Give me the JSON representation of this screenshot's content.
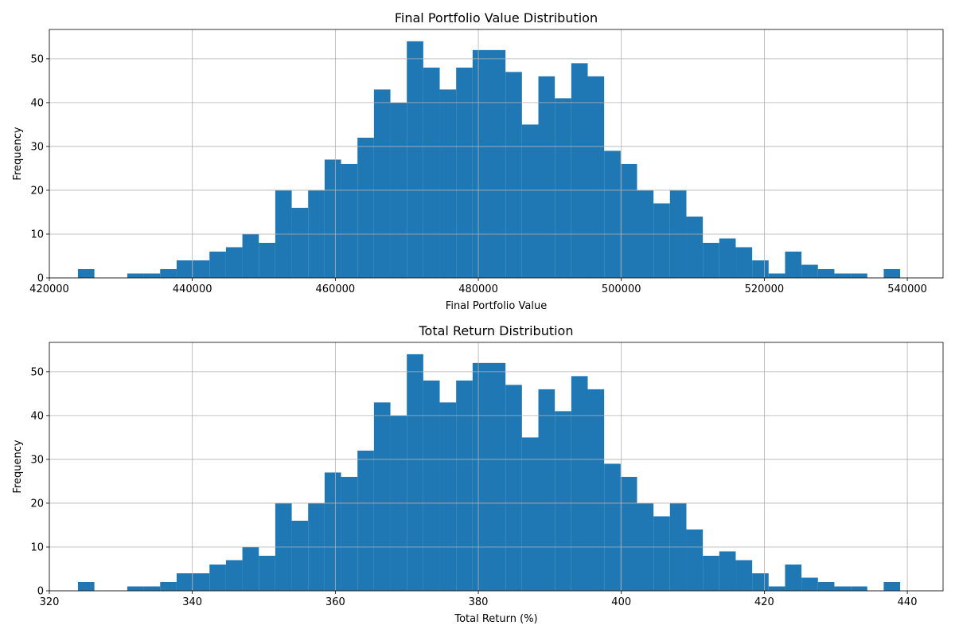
{
  "chart_data": [
    {
      "type": "bar",
      "title": "Final Portfolio Value Distribution",
      "xlabel": "Final Portfolio Value",
      "ylabel": "Frequency",
      "xlim": [
        420000,
        545000
      ],
      "ylim": [
        0,
        56.7
      ],
      "x_ticks": [
        420000,
        440000,
        460000,
        480000,
        500000,
        520000,
        540000
      ],
      "x_tick_labels": [
        "420000",
        "440000",
        "460000",
        "480000",
        "500000",
        "520000",
        "540000"
      ],
      "y_ticks": [
        0,
        10,
        20,
        30,
        40,
        50
      ],
      "y_tick_labels": [
        "0",
        "10",
        "20",
        "30",
        "40",
        "50"
      ],
      "grid": true,
      "bar_color": "#1f77b4",
      "bin_start": 424000,
      "bin_width": 2300,
      "values": [
        2,
        0,
        0,
        1,
        1,
        2,
        4,
        4,
        6,
        7,
        10,
        8,
        20,
        16,
        20,
        27,
        26,
        32,
        43,
        40,
        54,
        48,
        43,
        48,
        52,
        52,
        47,
        35,
        46,
        41,
        49,
        46,
        29,
        26,
        20,
        17,
        20,
        14,
        8,
        9,
        7,
        4,
        1,
        6,
        3,
        2,
        1,
        1,
        0,
        2
      ]
    },
    {
      "type": "bar",
      "title": "Total Return Distribution",
      "xlabel": "Total Return (%)",
      "ylabel": "Frequency",
      "xlim": [
        320,
        445
      ],
      "ylim": [
        0,
        56.7
      ],
      "x_ticks": [
        320,
        340,
        360,
        380,
        400,
        420,
        440
      ],
      "x_tick_labels": [
        "320",
        "340",
        "360",
        "380",
        "400",
        "420",
        "440"
      ],
      "y_ticks": [
        0,
        10,
        20,
        30,
        40,
        50
      ],
      "y_tick_labels": [
        "0",
        "10",
        "20",
        "30",
        "40",
        "50"
      ],
      "grid": true,
      "bar_color": "#1f77b4",
      "bin_start": 324,
      "bin_width": 2.3,
      "values": [
        2,
        0,
        0,
        1,
        1,
        2,
        4,
        4,
        6,
        7,
        10,
        8,
        20,
        16,
        20,
        27,
        26,
        32,
        43,
        40,
        54,
        48,
        43,
        48,
        52,
        52,
        47,
        35,
        46,
        41,
        49,
        46,
        29,
        26,
        20,
        17,
        20,
        14,
        8,
        9,
        7,
        4,
        1,
        6,
        3,
        2,
        1,
        1,
        0,
        2
      ]
    }
  ]
}
